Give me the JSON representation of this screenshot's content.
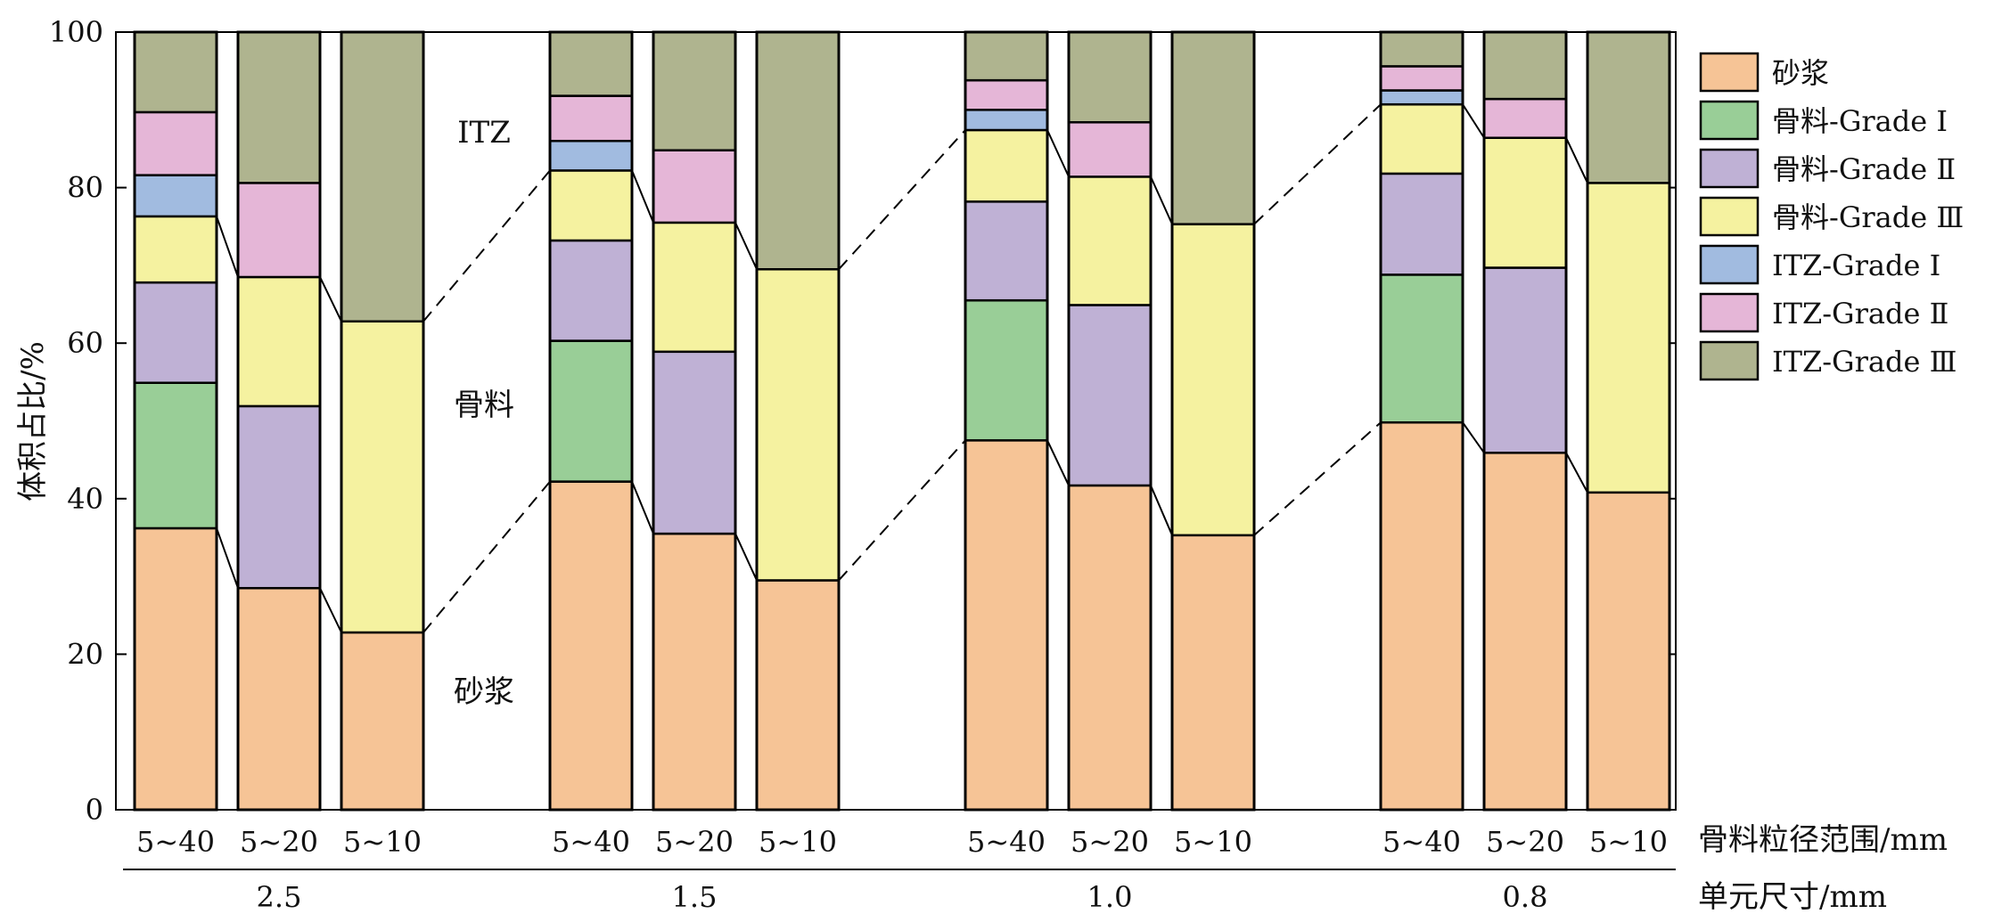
{
  "chart_data": {
    "type": "bar",
    "stacked": true,
    "ylabel": "体积占比/%",
    "ylim": [
      0,
      100
    ],
    "yticks": [
      0,
      20,
      40,
      60,
      80,
      100
    ],
    "xlabel": "骨料粒径范围/mm",
    "group_axis_label": "单元尺寸/mm",
    "legend_position": "right",
    "series": [
      {
        "name": "砂浆",
        "color": "#F6C496"
      },
      {
        "name": "骨料-Grade Ⅰ",
        "color": "#99CE97"
      },
      {
        "name": "骨料-Grade Ⅱ",
        "color": "#BFB1D5"
      },
      {
        "name": "骨料-Grade Ⅲ",
        "color": "#F5F2A0"
      },
      {
        "name": "ITZ-Grade Ⅰ",
        "color": "#A1BBE0"
      },
      {
        "name": "ITZ-Grade Ⅱ",
        "color": "#E5B6D7"
      },
      {
        "name": "ITZ-Grade Ⅲ",
        "color": "#AFB48F"
      }
    ],
    "groups": [
      {
        "label": "2.5",
        "bars": [
          {
            "category": "5~40",
            "values": [
              36.2,
              18.7,
              12.9,
              8.5,
              5.3,
              8.1,
              10.3
            ]
          },
          {
            "category": "5~20",
            "values": [
              28.5,
              0,
              23.4,
              16.6,
              0,
              12.1,
              19.4
            ]
          },
          {
            "category": "5~10",
            "values": [
              22.8,
              0,
              0,
              40.0,
              0,
              0,
              37.2
            ]
          }
        ]
      },
      {
        "label": "1.5",
        "bars": [
          {
            "category": "5~40",
            "values": [
              42.2,
              18.1,
              12.9,
              9.0,
              3.8,
              5.8,
              8.2
            ]
          },
          {
            "category": "5~20",
            "values": [
              35.5,
              0,
              23.4,
              16.6,
              0,
              9.3,
              15.2
            ]
          },
          {
            "category": "5~10",
            "values": [
              29.5,
              0,
              0,
              40.0,
              0,
              0,
              30.5
            ]
          }
        ]
      },
      {
        "label": "1.0",
        "bars": [
          {
            "category": "5~40",
            "values": [
              47.5,
              18.0,
              12.7,
              9.2,
              2.6,
              3.8,
              6.2
            ]
          },
          {
            "category": "5~20",
            "values": [
              41.7,
              0,
              23.2,
              16.5,
              0,
              7.0,
              11.6
            ]
          },
          {
            "category": "5~10",
            "values": [
              35.3,
              0,
              0,
              40.0,
              0,
              0,
              24.7
            ]
          }
        ]
      },
      {
        "label": "0.8",
        "bars": [
          {
            "category": "5~40",
            "values": [
              49.8,
              19.0,
              13.0,
              8.9,
              1.8,
              3.1,
              4.4
            ]
          },
          {
            "category": "5~20",
            "values": [
              45.9,
              0,
              23.8,
              16.7,
              0,
              5.0,
              8.6
            ]
          },
          {
            "category": "5~10",
            "values": [
              40.8,
              0,
              0,
              39.8,
              0,
              0,
              19.4
            ]
          }
        ]
      }
    ],
    "annotations": [
      "ITZ",
      "骨料",
      "砂浆"
    ]
  }
}
